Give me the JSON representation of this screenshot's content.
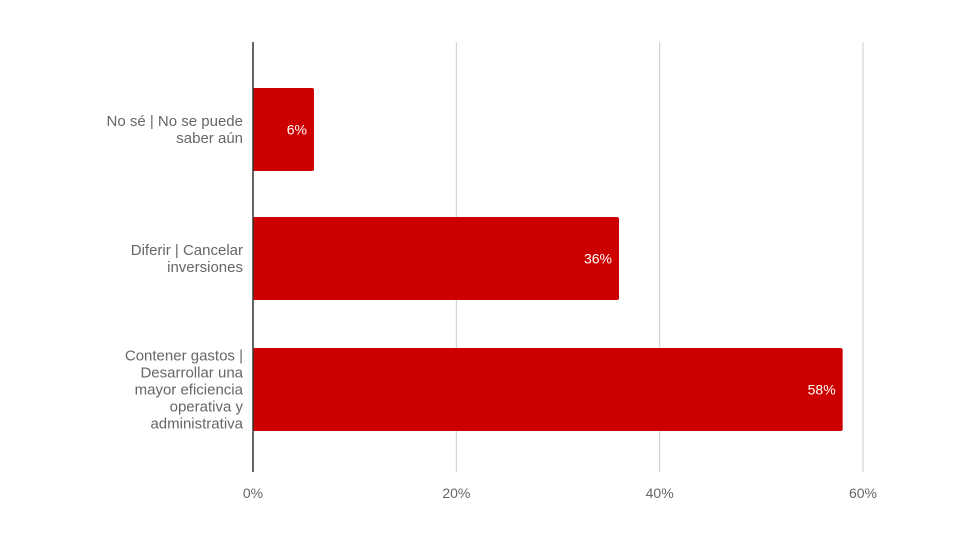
{
  "chart_data": {
    "type": "bar",
    "orientation": "horizontal",
    "categories": [
      [
        "No sé | No se puede",
        "saber aún"
      ],
      [
        "Diferir | Cancelar",
        "inversiones"
      ],
      [
        "Contener gastos |",
        "Desarrollar una",
        "mayor eficiencia",
        "operativa y",
        "administrativa"
      ]
    ],
    "values": [
      6,
      36,
      58
    ],
    "data_labels": [
      "6%",
      "36%",
      "58%"
    ],
    "xlim": [
      0,
      60
    ],
    "ticks": [
      0,
      20,
      40,
      60
    ],
    "tick_labels": [
      "0%",
      "20%",
      "40%",
      "60%"
    ],
    "grid": true,
    "legend": "none",
    "colors": {
      "bar": "#cc0000",
      "grid": "#cccccc",
      "axis": "#333333"
    }
  }
}
